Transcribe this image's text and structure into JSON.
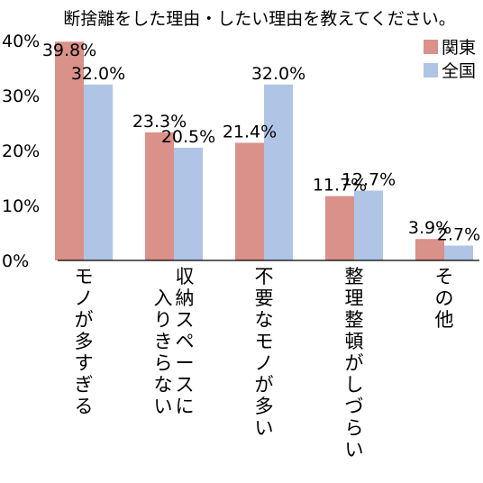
{
  "chart_data": {
    "type": "bar",
    "title": "断捨離をした理由・したい理由を教えてください。",
    "categories": [
      [
        "モノが多すぎる"
      ],
      [
        "収納スペースに",
        "入りきらない"
      ],
      [
        "不要なモノが多い"
      ],
      [
        "整理整頓がしづらい"
      ],
      [
        "その他"
      ]
    ],
    "series": [
      {
        "name": "関東",
        "values": [
          39.8,
          23.3,
          21.4,
          11.7,
          3.9
        ],
        "labels": [
          "39.8%",
          "23.3%",
          "21.4%",
          "11.7%",
          "3.9%"
        ],
        "color": "#d9918a"
      },
      {
        "name": "全国",
        "values": [
          32.0,
          20.5,
          32.0,
          12.7,
          2.7
        ],
        "labels": [
          "32.0%",
          "20.5%",
          "32.0%",
          "12.7%",
          "2.7%"
        ],
        "color": "#b0c4e6"
      }
    ],
    "yticks": [
      "0%",
      "10%",
      "20%",
      "30%",
      "40%"
    ],
    "ylim": [
      0,
      40
    ],
    "legend_position": "top-right",
    "grid": false
  }
}
